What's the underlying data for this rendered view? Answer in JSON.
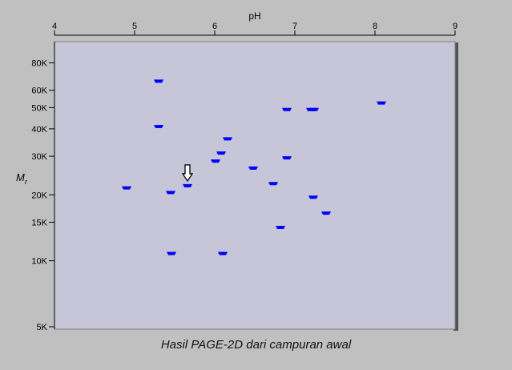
{
  "caption": "Hasil PAGE-2D dari campuran awal",
  "chart_data": {
    "type": "scatter",
    "title": "",
    "xlabel": "pH",
    "ylabel_main": "M",
    "ylabel_sub": "r",
    "xlim": [
      4,
      9
    ],
    "ylim": [
      5000,
      100000
    ],
    "yscale": "log",
    "x_ticks": [
      4,
      5,
      6,
      7,
      8,
      9
    ],
    "x_tick_labels": [
      "4",
      "5",
      "6",
      "7",
      "8",
      "9"
    ],
    "y_ticks": [
      80000,
      60000,
      50000,
      40000,
      30000,
      20000,
      15000,
      10000,
      5000
    ],
    "y_tick_labels": [
      "80K",
      "60K",
      "50K",
      "40K",
      "30K",
      "20K",
      "15K",
      "10K",
      "5K"
    ],
    "grid": false,
    "colors": {
      "plot_background": "#c6c6d8",
      "background": "#c0c0c0",
      "spot": "#0000ff",
      "axis": "#000000"
    },
    "points": [
      {
        "x": 5.3,
        "y": 66000
      },
      {
        "x": 5.3,
        "y": 41000
      },
      {
        "x": 4.9,
        "y": 21500
      },
      {
        "x": 5.45,
        "y": 20500
      },
      {
        "x": 5.66,
        "y": 22000
      },
      {
        "x": 5.46,
        "y": 10800
      },
      {
        "x": 6.1,
        "y": 10800
      },
      {
        "x": 6.16,
        "y": 36000
      },
      {
        "x": 6.08,
        "y": 31000
      },
      {
        "x": 6.01,
        "y": 28500
      },
      {
        "x": 6.48,
        "y": 26500
      },
      {
        "x": 6.9,
        "y": 49000
      },
      {
        "x": 6.9,
        "y": 29500
      },
      {
        "x": 6.73,
        "y": 22500
      },
      {
        "x": 6.82,
        "y": 14200
      },
      {
        "x": 7.2,
        "y": 49000
      },
      {
        "x": 7.24,
        "y": 49000
      },
      {
        "x": 7.23,
        "y": 19500
      },
      {
        "x": 7.39,
        "y": 16500
      },
      {
        "x": 8.08,
        "y": 52500
      }
    ],
    "annotation": {
      "type": "arrow",
      "target": {
        "x": 5.66,
        "y": 22000
      }
    }
  }
}
